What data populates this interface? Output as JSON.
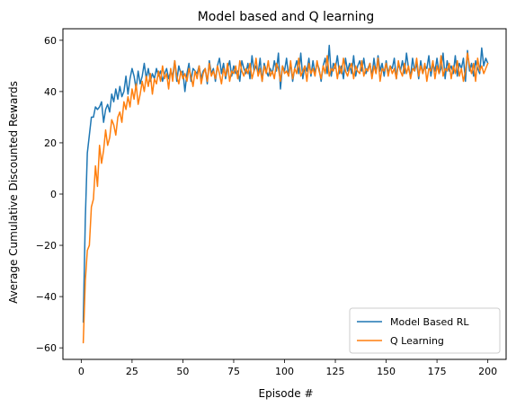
{
  "chart_data": {
    "type": "line",
    "title": "Model based and Q learning",
    "xlabel": "Episode #",
    "ylabel": "Average Cumulative Discounted Rewards",
    "xlim": [
      -9,
      209
    ],
    "ylim": [
      -64.5,
      64.5
    ],
    "xticks": [
      0,
      25,
      50,
      75,
      100,
      125,
      150,
      175,
      200
    ],
    "yticks": [
      -60,
      -40,
      -20,
      0,
      20,
      40,
      60
    ],
    "grid": false,
    "legend_position": "lower-right",
    "series": [
      {
        "name": "Model Based RL",
        "color": "#1f77b4",
        "x": [
          1,
          2,
          3,
          4,
          5,
          6,
          7,
          8,
          9,
          10,
          11,
          12,
          13,
          14,
          15,
          16,
          17,
          18,
          19,
          20,
          21,
          22,
          23,
          24,
          25,
          26,
          27,
          28,
          29,
          30,
          31,
          32,
          33,
          34,
          35,
          36,
          37,
          38,
          39,
          40,
          41,
          42,
          43,
          44,
          45,
          46,
          47,
          48,
          49,
          50,
          51,
          52,
          53,
          54,
          55,
          56,
          57,
          58,
          59,
          60,
          61,
          62,
          63,
          64,
          65,
          66,
          67,
          68,
          69,
          70,
          71,
          72,
          73,
          74,
          75,
          76,
          77,
          78,
          79,
          80,
          81,
          82,
          83,
          84,
          85,
          86,
          87,
          88,
          89,
          90,
          91,
          92,
          93,
          94,
          95,
          96,
          97,
          98,
          99,
          100,
          101,
          102,
          103,
          104,
          105,
          106,
          107,
          108,
          109,
          110,
          111,
          112,
          113,
          114,
          115,
          116,
          117,
          118,
          119,
          120,
          121,
          122,
          123,
          124,
          125,
          126,
          127,
          128,
          129,
          130,
          131,
          132,
          133,
          134,
          135,
          136,
          137,
          138,
          139,
          140,
          141,
          142,
          143,
          144,
          145,
          146,
          147,
          148,
          149,
          150,
          151,
          152,
          153,
          154,
          155,
          156,
          157,
          158,
          159,
          160,
          161,
          162,
          163,
          164,
          165,
          166,
          167,
          168,
          169,
          170,
          171,
          172,
          173,
          174,
          175,
          176,
          177,
          178,
          179,
          180,
          181,
          182,
          183,
          184,
          185,
          186,
          187,
          188,
          189,
          190,
          191,
          192,
          193,
          194,
          195,
          196,
          197,
          198,
          199,
          200
        ],
        "y": [
          -50,
          -10,
          16,
          23,
          30,
          30,
          34,
          33,
          34,
          36,
          28,
          33,
          35,
          32,
          39,
          36,
          41,
          37,
          42,
          38,
          40,
          46,
          39,
          45,
          49,
          46,
          41,
          48,
          43,
          46,
          51,
          45,
          49,
          44,
          47,
          45,
          49,
          46,
          48,
          44,
          47,
          49,
          45,
          48,
          46,
          52,
          44,
          50,
          47,
          48,
          40,
          47,
          51,
          44,
          49,
          48,
          47,
          50,
          45,
          48,
          49,
          43,
          52,
          47,
          49,
          44,
          50,
          53,
          47,
          51,
          45,
          49,
          52,
          46,
          50,
          47,
          48,
          44,
          52,
          49,
          47,
          51,
          45,
          54,
          48,
          50,
          47,
          53,
          44,
          51,
          48,
          46,
          49,
          47,
          52,
          48,
          55,
          41,
          50,
          48,
          53,
          46,
          51,
          44,
          49,
          52,
          47,
          55,
          45,
          50,
          48,
          53,
          46,
          52,
          47,
          51,
          49,
          44,
          50,
          53,
          47,
          58,
          46,
          51,
          49,
          54,
          47,
          50,
          45,
          53,
          48,
          51,
          47,
          54,
          46,
          50,
          52,
          48,
          53,
          47,
          49,
          51,
          46,
          53,
          47,
          54,
          48,
          51,
          46,
          52,
          47,
          50,
          49,
          53,
          45,
          51,
          48,
          52,
          47,
          55,
          49,
          46,
          53,
          48,
          51,
          45,
          52,
          47,
          50,
          49,
          54,
          46,
          51,
          48,
          53,
          47,
          49,
          55,
          45,
          52,
          48,
          50,
          47,
          54,
          46,
          51,
          49,
          53,
          44,
          56,
          48,
          51,
          46,
          52,
          49,
          47,
          57,
          50,
          53,
          51
        ]
      },
      {
        "name": "Q Learning",
        "color": "#ff7f0e",
        "x": [
          1,
          2,
          3,
          4,
          5,
          6,
          7,
          8,
          9,
          10,
          11,
          12,
          13,
          14,
          15,
          16,
          17,
          18,
          19,
          20,
          21,
          22,
          23,
          24,
          25,
          26,
          27,
          28,
          29,
          30,
          31,
          32,
          33,
          34,
          35,
          36,
          37,
          38,
          39,
          40,
          41,
          42,
          43,
          44,
          45,
          46,
          47,
          48,
          49,
          50,
          51,
          52,
          53,
          54,
          55,
          56,
          57,
          58,
          59,
          60,
          61,
          62,
          63,
          64,
          65,
          66,
          67,
          68,
          69,
          70,
          71,
          72,
          73,
          74,
          75,
          76,
          77,
          78,
          79,
          80,
          81,
          82,
          83,
          84,
          85,
          86,
          87,
          88,
          89,
          90,
          91,
          92,
          93,
          94,
          95,
          96,
          97,
          98,
          99,
          100,
          101,
          102,
          103,
          104,
          105,
          106,
          107,
          108,
          109,
          110,
          111,
          112,
          113,
          114,
          115,
          116,
          117,
          118,
          119,
          120,
          121,
          122,
          123,
          124,
          125,
          126,
          127,
          128,
          129,
          130,
          131,
          132,
          133,
          134,
          135,
          136,
          137,
          138,
          139,
          140,
          141,
          142,
          143,
          144,
          145,
          146,
          147,
          148,
          149,
          150,
          151,
          152,
          153,
          154,
          155,
          156,
          157,
          158,
          159,
          160,
          161,
          162,
          163,
          164,
          165,
          166,
          167,
          168,
          169,
          170,
          171,
          172,
          173,
          174,
          175,
          176,
          177,
          178,
          179,
          180,
          181,
          182,
          183,
          184,
          185,
          186,
          187,
          188,
          189,
          190,
          191,
          192,
          193,
          194,
          195,
          196,
          197,
          198,
          199,
          200
        ],
        "y": [
          -58,
          -34,
          -22,
          -20,
          -5,
          -2,
          11,
          3,
          19,
          12,
          17,
          25,
          19,
          22,
          29,
          27,
          23,
          30,
          32,
          28,
          36,
          33,
          38,
          34,
          41,
          37,
          43,
          35,
          39,
          44,
          40,
          46,
          42,
          47,
          39,
          45,
          43,
          48,
          44,
          50,
          45,
          47,
          41,
          49,
          44,
          52,
          46,
          43,
          48,
          45,
          47,
          44,
          49,
          46,
          42,
          48,
          45,
          50,
          43,
          47,
          49,
          44,
          51,
          46,
          48,
          45,
          50,
          47,
          43,
          49,
          46,
          51,
          44,
          48,
          47,
          50,
          45,
          52,
          48,
          46,
          49,
          47,
          51,
          45,
          48,
          53,
          46,
          49,
          44,
          50,
          47,
          52,
          46,
          48,
          45,
          51,
          49,
          44,
          50,
          47,
          48,
          46,
          52,
          45,
          49,
          47,
          53,
          46,
          48,
          50,
          44,
          51,
          47,
          49,
          46,
          52,
          48,
          45,
          50,
          47,
          54,
          46,
          49,
          48,
          51,
          45,
          50,
          47,
          53,
          48,
          46,
          49,
          51,
          45,
          50,
          48,
          47,
          52,
          46,
          49,
          48,
          51,
          45,
          50,
          47,
          53,
          44,
          49,
          48,
          51,
          46,
          50,
          47,
          49,
          45,
          52,
          48,
          46,
          51,
          47,
          50,
          45,
          49,
          48,
          53,
          46,
          50,
          47,
          51,
          44,
          49,
          48,
          52,
          45,
          50,
          47,
          54,
          46,
          49,
          48,
          51,
          45,
          50,
          47,
          52,
          46,
          49,
          44,
          48,
          55,
          50,
          47,
          51,
          44,
          53,
          48,
          50,
          47,
          49,
          51
        ]
      }
    ]
  }
}
